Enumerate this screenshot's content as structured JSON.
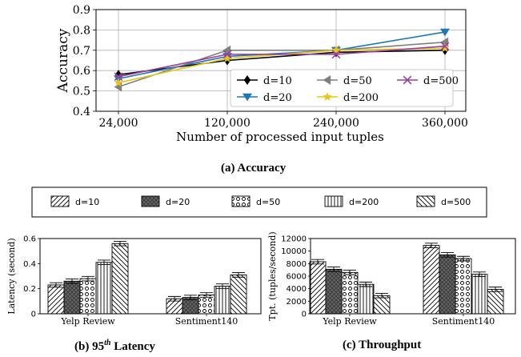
{
  "chart_data": [
    {
      "type": "line",
      "id": "accuracy",
      "caption": "(a) Accuracy",
      "xlabel": "Number of processed input tuples",
      "ylabel": "Accuracy",
      "categories": [
        "24,000",
        "120,000",
        "240,000",
        "360,000"
      ],
      "ylim": [
        0.4,
        0.9
      ],
      "yticks": [
        "0.4",
        "0.5",
        "0.6",
        "0.7",
        "0.8",
        "0.9"
      ],
      "grid": true,
      "legend_position": "bottom-right",
      "series": [
        {
          "name": "d=10",
          "marker": "diamond",
          "color": "#000000",
          "values": [
            0.58,
            0.65,
            0.69,
            0.7
          ]
        },
        {
          "name": "d=20",
          "marker": "triangle-down",
          "color": "#1f77b4",
          "values": [
            0.56,
            0.67,
            0.7,
            0.79
          ]
        },
        {
          "name": "d=50",
          "marker": "triangle-left",
          "color": "#7f7f7f",
          "values": [
            0.52,
            0.7,
            0.7,
            0.74
          ]
        },
        {
          "name": "d=200",
          "marker": "star",
          "color": "#e6c619",
          "values": [
            0.54,
            0.66,
            0.7,
            0.71
          ]
        },
        {
          "name": "d=500",
          "marker": "x",
          "color": "#9b3d9b",
          "values": [
            0.57,
            0.68,
            0.68,
            0.72
          ]
        }
      ]
    },
    {
      "type": "bar",
      "id": "latency",
      "caption_prefix": "(b) 95",
      "caption_sup": "th",
      "caption_suffix": " Latency",
      "ylabel": "Latency (second)",
      "categories": [
        "Yelp Review",
        "Sentiment140"
      ],
      "ylim": [
        0,
        0.6
      ],
      "yticks": [
        "0",
        "0.2",
        "0.4",
        "0.6"
      ],
      "series": [
        {
          "name": "d=10",
          "values": [
            0.23,
            0.12
          ]
        },
        {
          "name": "d=20",
          "values": [
            0.26,
            0.13
          ]
        },
        {
          "name": "d=50",
          "values": [
            0.28,
            0.15
          ]
        },
        {
          "name": "d=200",
          "values": [
            0.41,
            0.22
          ]
        },
        {
          "name": "d=500",
          "values": [
            0.56,
            0.31
          ]
        }
      ]
    },
    {
      "type": "bar",
      "id": "throughput",
      "caption": "(c) Throughput",
      "ylabel": "Tpt. (tuples/second)",
      "categories": [
        "Yelp Review",
        "Sentiment140"
      ],
      "ylim": [
        0,
        12000
      ],
      "yticks": [
        "0",
        "2000",
        "4000",
        "6000",
        "8000",
        "10000",
        "12000"
      ],
      "series": [
        {
          "name": "d=10",
          "values": [
            8300,
            10900
          ]
        },
        {
          "name": "d=20",
          "values": [
            7100,
            9400
          ]
        },
        {
          "name": "d=50",
          "values": [
            6600,
            8800
          ]
        },
        {
          "name": "d=200",
          "values": [
            4700,
            6300
          ]
        },
        {
          "name": "d=500",
          "values": [
            2900,
            3900
          ]
        }
      ]
    }
  ],
  "bar_legend": [
    "d=10",
    "d=20",
    "d=50",
    "d=200",
    "d=500"
  ]
}
